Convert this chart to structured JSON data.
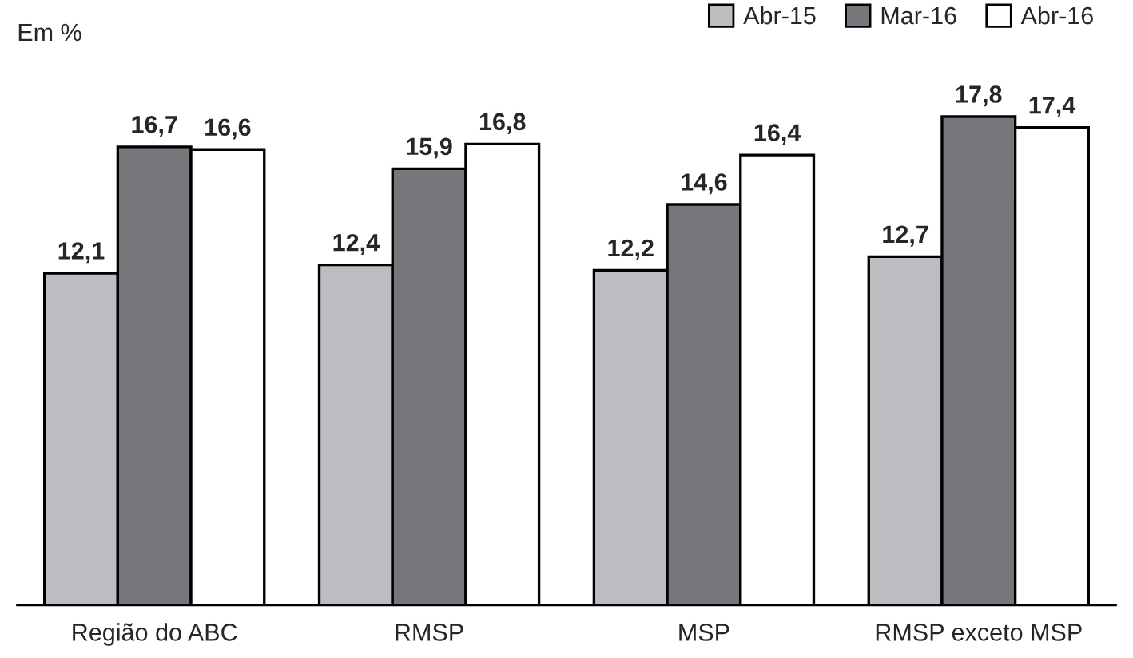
{
  "chart_data": {
    "type": "bar",
    "categories": [
      "Região do ABC",
      "RMSP",
      "MSP",
      "RMSP exceto MSP"
    ],
    "series": [
      {
        "name": "Abr-15",
        "color": "#bcbdc0",
        "values": [
          12.1,
          12.4,
          12.2,
          12.7
        ],
        "value_labels": [
          "12,1",
          "12,4",
          "12,2",
          "12,7"
        ]
      },
      {
        "name": "Mar-16",
        "color": "#76777a",
        "values": [
          16.7,
          15.9,
          14.6,
          17.8
        ],
        "value_labels": [
          "16,7",
          "15,9",
          "14,6",
          "17,8"
        ]
      },
      {
        "name": "Abr-16",
        "color": "#ffffff",
        "values": [
          16.6,
          16.8,
          16.4,
          17.4
        ],
        "value_labels": [
          "16,6",
          "16,8",
          "16,4",
          "17,4"
        ]
      }
    ],
    "legend": "top right",
    "annotations": [
      "Em %"
    ]
  }
}
